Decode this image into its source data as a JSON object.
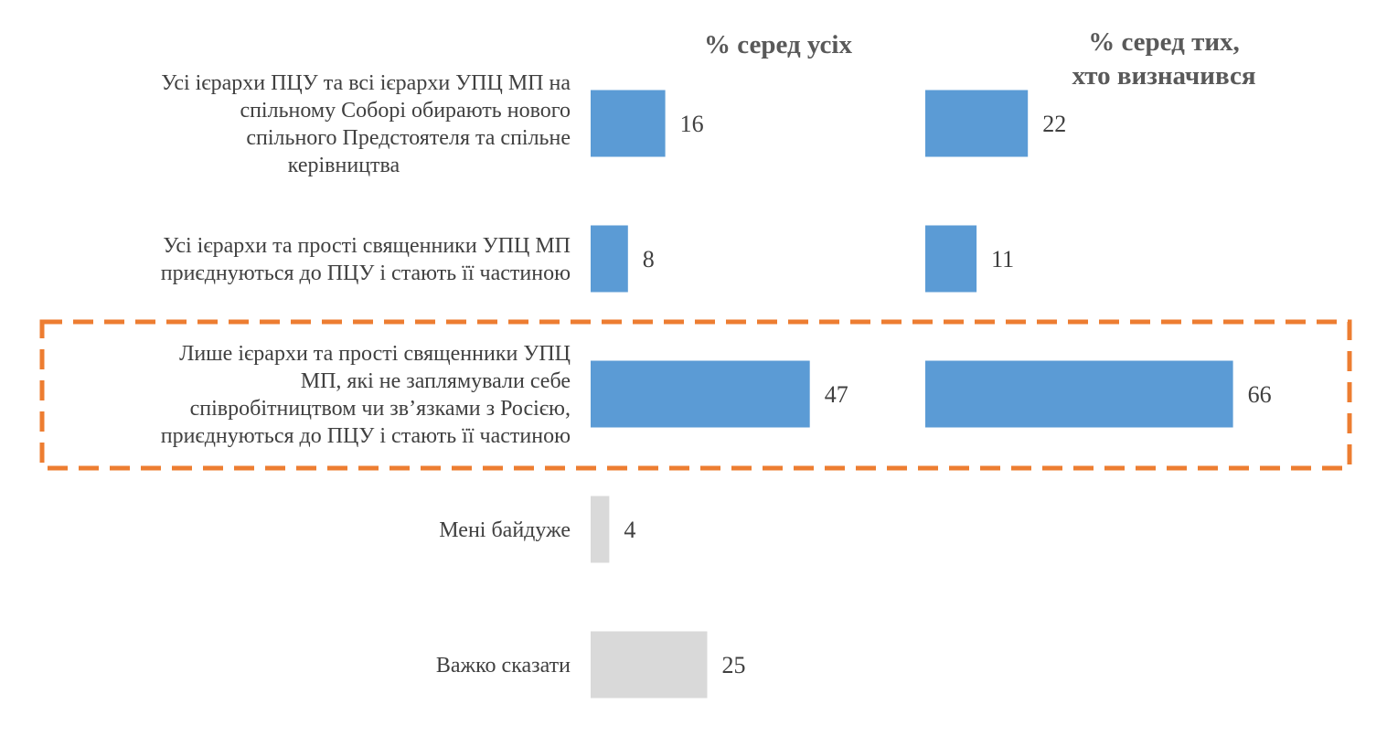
{
  "chart_data": {
    "type": "bar",
    "orientation": "horizontal",
    "categories": [
      [
        "Усі ієрархи ПЦУ та всі ієрархи УПЦ МП на",
        "спільному Соборі обирають нового",
        "спільного Предстоятеля та спільне",
        "керівництва"
      ],
      [
        "Усі ієрархи та прості священники УПЦ МП",
        "приєднуються до ПЦУ і стають її частиною"
      ],
      [
        "Лише ієрархи та прості священники УПЦ",
        "МП, які не заплямували себе",
        "співробітництвом чи зв’язками з Росією,",
        "приєднуються до ПЦУ і стають її частиною"
      ],
      [
        "Мені байдуже"
      ],
      [
        "Важко сказати"
      ]
    ],
    "series": [
      {
        "name": "% серед усіх",
        "values": [
          16,
          8,
          47,
          4,
          25
        ],
        "colors": [
          "#5b9bd5",
          "#5b9bd5",
          "#5b9bd5",
          "#d9d9d9",
          "#d9d9d9"
        ]
      },
      {
        "name": [
          "% серед тих,",
          "хто визначився"
        ],
        "values": [
          22,
          11,
          66,
          null,
          null
        ],
        "colors": [
          "#5b9bd5",
          "#5b9bd5",
          "#5b9bd5",
          null,
          null
        ]
      }
    ],
    "highlight_category_index": 2,
    "highlight_color": "#ed7d31",
    "title": "",
    "xlabel": "",
    "ylabel": "",
    "grid": false,
    "legend": "none"
  }
}
